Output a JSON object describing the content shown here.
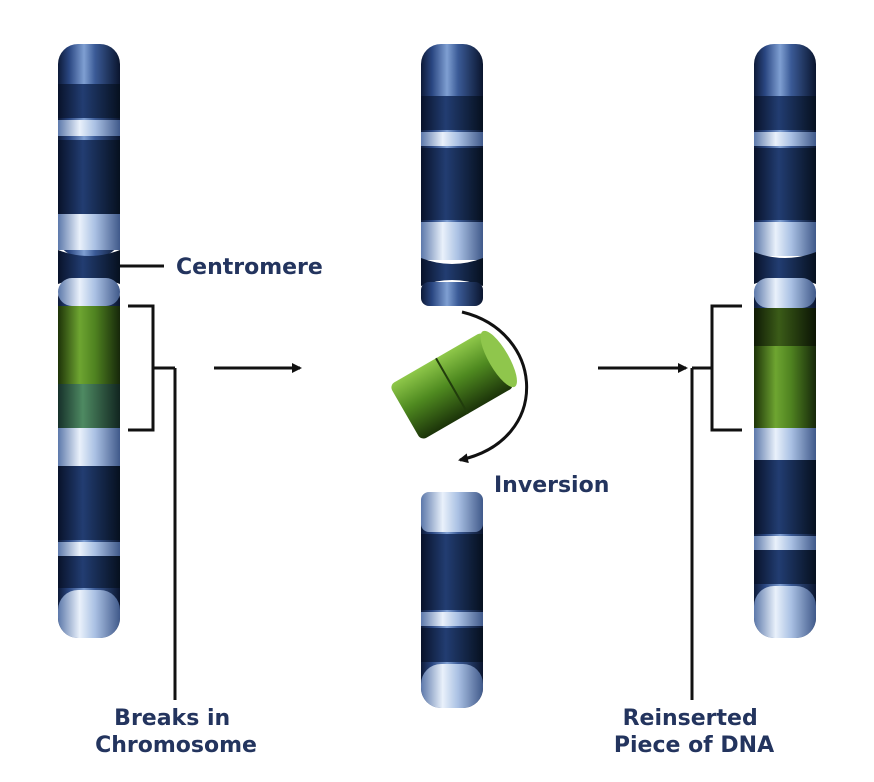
{
  "labels": {
    "centromere": "Centromere",
    "breaks_line1": "Breaks in",
    "breaks_line2": "Chromosome",
    "inversion": "Inversion",
    "reinserted_line1": "Reinserted",
    "reinserted_line2": "Piece of DNA"
  },
  "colors": {
    "chromosome_dark": "#1c3160",
    "chromosome_mid": "#3d5f9c",
    "chromosome_light": "#b9cdea",
    "segment_green": "#5f9a2c",
    "segment_green_dark": "#2d4a12",
    "text": "#23345e",
    "arrow": "#111111"
  }
}
